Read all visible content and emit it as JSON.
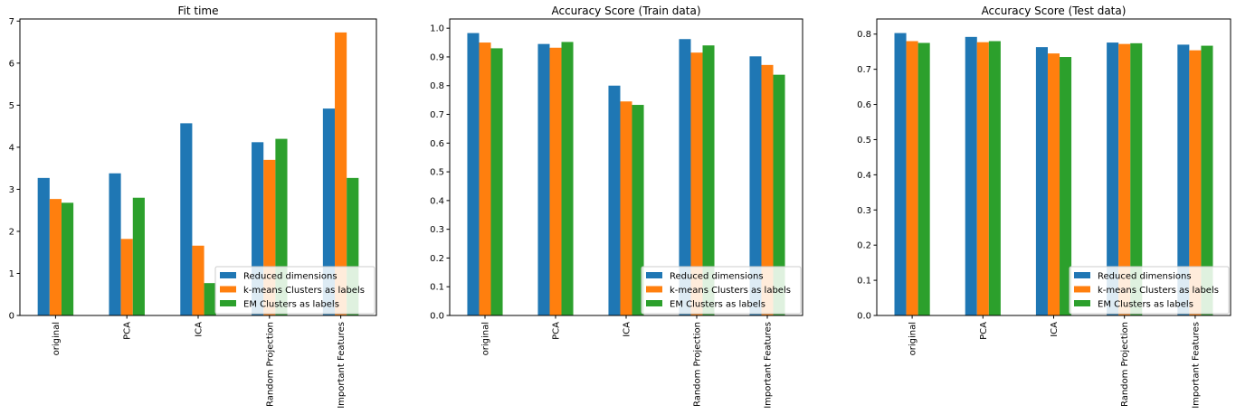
{
  "chart_data": [
    {
      "type": "bar",
      "title": "Fit time",
      "categories": [
        "original",
        "PCA",
        "ICA",
        "Random Projection",
        "Important Features"
      ],
      "series": [
        {
          "name": "Reduced dimensions",
          "values": [
            3.27,
            3.38,
            4.57,
            4.12,
            4.92
          ]
        },
        {
          "name": "k-means Clusters as labels",
          "values": [
            2.77,
            1.82,
            1.66,
            3.7,
            6.73
          ]
        },
        {
          "name": "EM Clusters as labels",
          "values": [
            2.68,
            2.8,
            0.77,
            4.2,
            3.27
          ]
        }
      ],
      "ylim": [
        0,
        7.05
      ],
      "yticks": [
        0,
        1,
        2,
        3,
        4,
        5,
        6,
        7
      ],
      "ytick_labels": [
        "0",
        "1",
        "2",
        "3",
        "4",
        "5",
        "6",
        "7"
      ],
      "legend_loc": "lower-right",
      "grid": false
    },
    {
      "type": "bar",
      "title": "Accuracy Score (Train data)",
      "categories": [
        "original",
        "PCA",
        "ICA",
        "Random Projection",
        "Important Features"
      ],
      "series": [
        {
          "name": "Reduced dimensions",
          "values": [
            0.983,
            0.945,
            0.8,
            0.962,
            0.902
          ]
        },
        {
          "name": "k-means Clusters as labels",
          "values": [
            0.95,
            0.932,
            0.745,
            0.915,
            0.872
          ]
        },
        {
          "name": "EM Clusters as labels",
          "values": [
            0.93,
            0.952,
            0.733,
            0.94,
            0.838
          ]
        }
      ],
      "ylim": [
        0,
        1.032
      ],
      "yticks": [
        0,
        0.1,
        0.2,
        0.3,
        0.4,
        0.5,
        0.6,
        0.7,
        0.8,
        0.9,
        1.0
      ],
      "ytick_labels": [
        "0.0",
        "0.1",
        "0.2",
        "0.3",
        "0.4",
        "0.5",
        "0.6",
        "0.7",
        "0.8",
        "0.9",
        "1.0"
      ],
      "legend_loc": "lower-right",
      "grid": false
    },
    {
      "type": "bar",
      "title": "Accuracy Score (Test data)",
      "categories": [
        "original",
        "PCA",
        "ICA",
        "Random Projection",
        "Important Features"
      ],
      "series": [
        {
          "name": "Reduced dimensions",
          "values": [
            0.803,
            0.792,
            0.763,
            0.776,
            0.77
          ]
        },
        {
          "name": "k-means Clusters as labels",
          "values": [
            0.78,
            0.777,
            0.745,
            0.772,
            0.754
          ]
        },
        {
          "name": "EM Clusters as labels",
          "values": [
            0.775,
            0.78,
            0.735,
            0.774,
            0.767
          ]
        }
      ],
      "ylim": [
        0,
        0.843
      ],
      "yticks": [
        0,
        0.1,
        0.2,
        0.3,
        0.4,
        0.5,
        0.6,
        0.7,
        0.8
      ],
      "ytick_labels": [
        "0.0",
        "0.1",
        "0.2",
        "0.3",
        "0.4",
        "0.5",
        "0.6",
        "0.7",
        "0.8"
      ],
      "legend_loc": "lower-right",
      "grid": false
    }
  ],
  "colors": {
    "series": [
      "#1f77b4",
      "#ff7f0e",
      "#2ca02c"
    ],
    "axis": "#000000",
    "legend_border": "#cccccc"
  }
}
